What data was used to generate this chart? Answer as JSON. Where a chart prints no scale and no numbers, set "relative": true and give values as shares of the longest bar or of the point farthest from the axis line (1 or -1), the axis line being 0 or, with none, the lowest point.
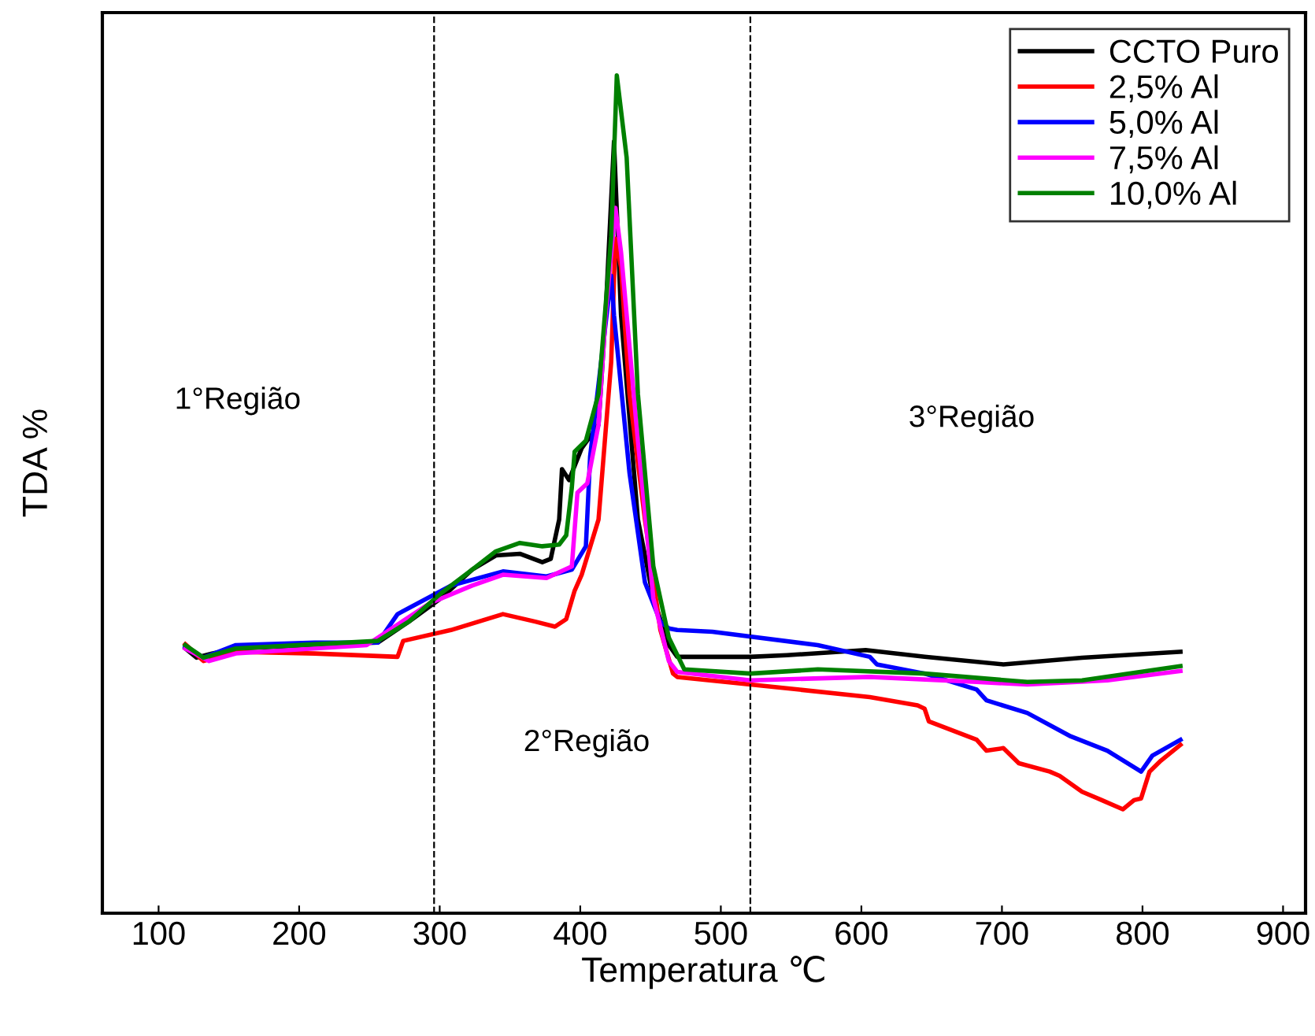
{
  "chart_data": {
    "type": "line",
    "relative": true,
    "xlabel": "Temperatura ℃",
    "ylabel": "TDA %",
    "xlim": [
      60,
      916
    ],
    "xticks": [
      100,
      200,
      300,
      400,
      500,
      600,
      700,
      800,
      900
    ],
    "tick_labels": "x",
    "grid": false,
    "legend": "top right",
    "line_style": "solid",
    "ref_lines": [
      {
        "axis": "x",
        "value": 296,
        "color": "#000000",
        "line_style": "dashed"
      },
      {
        "axis": "x",
        "value": 521,
        "color": "#000000",
        "line_style": "dashed"
      }
    ],
    "annotations": [
      "1°Região",
      "2°Região",
      "3°Região"
    ],
    "series": [
      {
        "name": "CCTO Puro",
        "color": "#000000",
        "x": [
          119,
          127,
          138,
          155,
          211,
          256,
          278,
          301,
          323,
          340,
          357,
          373,
          379,
          385,
          387,
          392,
          401,
          413,
          418,
          424,
          429,
          441,
          452,
          463,
          469,
          491,
          521,
          547,
          603,
          645,
          701,
          757,
          827
        ],
        "values": [
          0.316,
          0.305,
          0.31,
          0.316,
          0.32,
          0.323,
          0.348,
          0.376,
          0.41,
          0.427,
          0.429,
          0.419,
          0.423,
          0.47,
          0.53,
          0.517,
          0.555,
          0.583,
          0.714,
          0.921,
          0.714,
          0.47,
          0.376,
          0.32,
          0.306,
          0.306,
          0.306,
          0.308,
          0.314,
          0.306,
          0.297,
          0.305,
          0.312
        ]
      },
      {
        "name": "2,5% Al",
        "color": "#ff0000",
        "x": [
          119,
          132,
          155,
          211,
          270,
          274,
          308,
          345,
          368,
          382,
          390,
          396,
          401,
          413,
          422,
          425,
          429,
          435,
          446,
          457,
          466,
          469,
          521,
          606,
          640,
          645,
          648,
          682,
          689,
          701,
          712,
          734,
          741,
          757,
          771,
          786,
          794,
          799,
          805,
          813,
          827
        ],
        "values": [
          0.321,
          0.301,
          0.312,
          0.31,
          0.306,
          0.325,
          0.338,
          0.357,
          0.348,
          0.342,
          0.351,
          0.385,
          0.404,
          0.47,
          0.658,
          0.805,
          0.771,
          0.62,
          0.47,
          0.338,
          0.286,
          0.282,
          0.273,
          0.258,
          0.248,
          0.244,
          0.229,
          0.207,
          0.194,
          0.197,
          0.179,
          0.169,
          0.164,
          0.145,
          0.135,
          0.124,
          0.135,
          0.137,
          0.169,
          0.182,
          0.201
        ]
      },
      {
        "name": "5,0% Al",
        "color": "#0000ff",
        "x": [
          119,
          132,
          155,
          211,
          256,
          270,
          308,
          345,
          376,
          394,
          404,
          407,
          422,
          424,
          435,
          446,
          457,
          463,
          469,
          494,
          569,
          606,
          611,
          645,
          682,
          689,
          718,
          749,
          775,
          799,
          807,
          827
        ],
        "values": [
          0.318,
          0.305,
          0.32,
          0.323,
          0.323,
          0.357,
          0.391,
          0.408,
          0.402,
          0.41,
          0.438,
          0.545,
          0.761,
          0.714,
          0.526,
          0.395,
          0.348,
          0.34,
          0.338,
          0.336,
          0.32,
          0.306,
          0.297,
          0.286,
          0.267,
          0.254,
          0.239,
          0.211,
          0.194,
          0.169,
          0.188,
          0.207
        ]
      },
      {
        "name": "7,5% Al",
        "color": "#ff00ff",
        "x": [
          119,
          136,
          155,
          248,
          293,
          323,
          345,
          376,
          394,
          398,
          405,
          413,
          418,
          425,
          429,
          441,
          452,
          463,
          469,
          521,
          606,
          682,
          718,
          775,
          827
        ],
        "values": [
          0.316,
          0.301,
          0.31,
          0.32,
          0.37,
          0.391,
          0.404,
          0.4,
          0.414,
          0.502,
          0.513,
          0.583,
          0.714,
          0.842,
          0.789,
          0.564,
          0.376,
          0.301,
          0.288,
          0.278,
          0.282,
          0.276,
          0.273,
          0.278,
          0.289
        ]
      },
      {
        "name": "10,0% Al",
        "color": "#008000",
        "x": [
          119,
          132,
          155,
          211,
          256,
          278,
          301,
          323,
          340,
          357,
          373,
          385,
          390,
          394,
          396,
          404,
          413,
          422,
          426,
          433,
          441,
          452,
          463,
          474,
          521,
          569,
          645,
          718,
          757,
          827
        ],
        "values": [
          0.32,
          0.305,
          0.316,
          0.321,
          0.325,
          0.348,
          0.382,
          0.41,
          0.432,
          0.442,
          0.438,
          0.44,
          0.451,
          0.508,
          0.551,
          0.564,
          0.62,
          0.808,
          1.0,
          0.902,
          0.62,
          0.414,
          0.329,
          0.291,
          0.286,
          0.291,
          0.286,
          0.276,
          0.278,
          0.295
        ]
      }
    ]
  }
}
